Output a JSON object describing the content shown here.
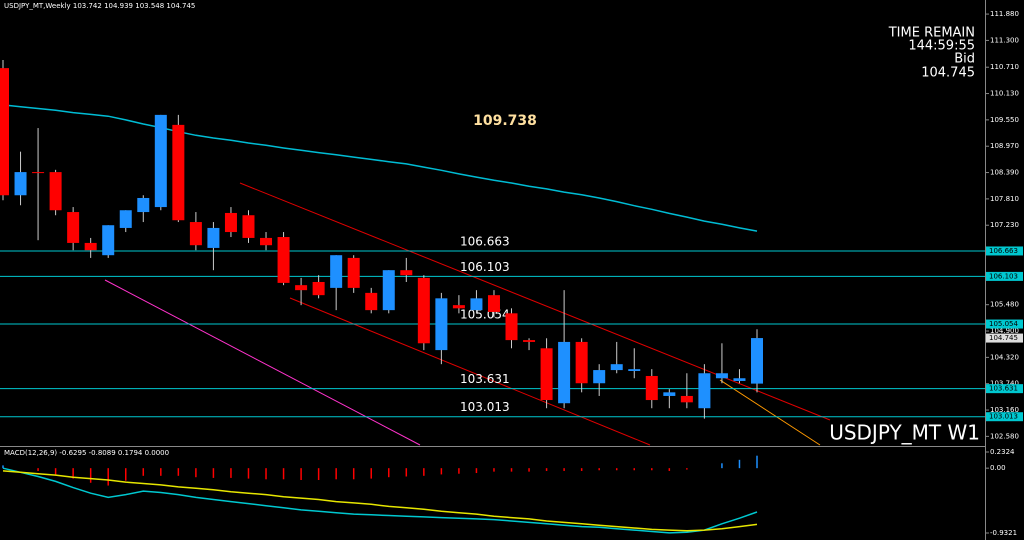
{
  "chart_data": {
    "type": "candlestick",
    "title": "USDJPY_MT,Weekly  103.742 104.939 103.548 104.745",
    "info": [
      "TIME REMAIN",
      "144:59:55",
      "Bid",
      "104.745"
    ],
    "watermark": "USDJPY_MT W1",
    "annotation": "109.738",
    "ylim": [
      102.39,
      112.19
    ],
    "yticks": [
      {
        "value": 111.88,
        "label": "111.880"
      },
      {
        "value": 111.3,
        "label": "111.300"
      },
      {
        "value": 110.71,
        "label": "110.710"
      },
      {
        "value": 110.13,
        "label": "110.130"
      },
      {
        "value": 109.55,
        "label": "109.550"
      },
      {
        "value": 108.97,
        "label": "108.970"
      },
      {
        "value": 108.39,
        "label": "108.390"
      },
      {
        "value": 107.81,
        "label": "107.810"
      },
      {
        "value": 107.23,
        "label": "107.230"
      },
      {
        "value": 105.48,
        "label": "105.480"
      },
      {
        "value": 104.9,
        "label": "104.900"
      },
      {
        "value": 104.32,
        "label": "104.320"
      },
      {
        "value": 103.74,
        "label": "103.740"
      },
      {
        "value": 103.16,
        "label": "103.160"
      },
      {
        "value": 102.58,
        "label": "102.580"
      }
    ],
    "levels": [
      106.663,
      106.103,
      105.054,
      103.631,
      103.013
    ],
    "level_color": "#00c8d0",
    "bull_color": "#1e90ff",
    "bear_color": "#ff0000",
    "open": [
      110.69,
      107.89,
      108.4,
      108.4,
      107.52,
      106.84,
      106.57,
      107.17,
      107.52,
      107.63,
      109.44,
      107.3,
      106.73,
      107.5,
      107.45,
      106.95,
      106.97,
      105.91,
      105.98,
      105.85,
      106.51,
      105.74,
      105.36,
      106.24,
      106.07,
      104.48,
      105.47,
      105.36,
      105.69,
      105.29,
      104.7,
      104.52,
      103.31,
      104.66,
      103.75,
      104.04,
      104.02,
      103.91,
      103.47,
      103.47,
      103.2,
      103.86,
      103.8,
      103.742
    ],
    "high": [
      110.87,
      108.85,
      109.37,
      108.45,
      107.63,
      106.95,
      107.23,
      107.56,
      107.89,
      109.66,
      109.66,
      107.52,
      107.3,
      107.63,
      107.56,
      107.08,
      107.08,
      106.07,
      106.13,
      106.57,
      106.57,
      105.85,
      106.24,
      106.51,
      106.13,
      105.74,
      105.69,
      105.8,
      105.8,
      105.4,
      104.74,
      104.74,
      105.8,
      104.74,
      104.17,
      104.66,
      104.52,
      104.06,
      103.62,
      103.97,
      104.17,
      104.63,
      104.06,
      104.939
    ],
    "low": [
      107.78,
      107.67,
      106.9,
      107.45,
      106.68,
      106.51,
      106.51,
      107.08,
      107.3,
      107.56,
      107.3,
      106.68,
      106.24,
      106.97,
      106.84,
      106.68,
      105.91,
      105.47,
      105.62,
      105.36,
      105.74,
      105.29,
      105.29,
      105.98,
      104.48,
      104.17,
      105.29,
      105.29,
      105.2,
      104.52,
      104.48,
      103.2,
      103.2,
      103.55,
      103.47,
      103.97,
      103.86,
      103.2,
      103.2,
      103.2,
      102.97,
      103.75,
      103.75,
      103.548
    ],
    "close": [
      107.89,
      108.4,
      108.38,
      107.56,
      106.84,
      106.68,
      107.23,
      107.56,
      107.83,
      109.66,
      107.34,
      106.79,
      107.17,
      107.08,
      106.95,
      106.79,
      105.96,
      105.8,
      105.69,
      106.57,
      105.85,
      105.36,
      106.24,
      106.13,
      104.63,
      105.62,
      105.4,
      105.62,
      105.32,
      104.7,
      104.66,
      103.38,
      104.66,
      103.75,
      104.04,
      104.17,
      104.06,
      103.38,
      103.55,
      103.33,
      103.97,
      103.97,
      103.86,
      104.745
    ],
    "ma_color": "#00bcd4",
    "ma_values": [
      109.88,
      109.84,
      109.8,
      109.76,
      109.71,
      109.67,
      109.63,
      109.55,
      109.46,
      109.38,
      109.29,
      109.21,
      109.15,
      109.1,
      109.04,
      108.99,
      108.93,
      108.88,
      108.83,
      108.78,
      108.73,
      108.68,
      108.63,
      108.58,
      108.51,
      108.44,
      108.36,
      108.29,
      108.22,
      108.16,
      108.09,
      108.03,
      107.96,
      107.9,
      107.83,
      107.75,
      107.66,
      107.58,
      107.49,
      107.41,
      107.32,
      107.25,
      107.17,
      107.1
    ],
    "macd": {
      "title": "MACD(12,26,9) -0.6295 -0.8089 0.1794 0.0000",
      "ylim": [
        -0.9321,
        0.2324
      ],
      "yticks": [
        0.2324,
        {
          "value": 0,
          "label": "0.00"
        },
        -0.9321
      ],
      "main_color": "#00c8d0",
      "signal_color": "#e6e600",
      "main": [
        0,
        -0.06,
        -0.12,
        -0.19,
        -0.28,
        -0.36,
        -0.42,
        -0.38,
        -0.33,
        -0.35,
        -0.38,
        -0.42,
        -0.45,
        -0.48,
        -0.51,
        -0.54,
        -0.57,
        -0.6,
        -0.62,
        -0.64,
        -0.66,
        -0.67,
        -0.68,
        -0.69,
        -0.7,
        -0.71,
        -0.72,
        -0.73,
        -0.74,
        -0.76,
        -0.78,
        -0.8,
        -0.82,
        -0.84,
        -0.85,
        -0.87,
        -0.89,
        -0.91,
        -0.93,
        -0.92,
        -0.89,
        -0.8,
        -0.72,
        -0.6295
      ],
      "signal": [
        -0.04,
        -0.06,
        -0.08,
        -0.1,
        -0.13,
        -0.15,
        -0.17,
        -0.2,
        -0.22,
        -0.24,
        -0.27,
        -0.29,
        -0.31,
        -0.34,
        -0.36,
        -0.38,
        -0.41,
        -0.43,
        -0.45,
        -0.48,
        -0.5,
        -0.52,
        -0.55,
        -0.57,
        -0.59,
        -0.62,
        -0.64,
        -0.66,
        -0.69,
        -0.71,
        -0.73,
        -0.76,
        -0.78,
        -0.8,
        -0.82,
        -0.84,
        -0.86,
        -0.88,
        -0.89,
        -0.9,
        -0.89,
        -0.87,
        -0.84,
        -0.8089
      ],
      "histogram": [
        0.04,
        0,
        -0.04,
        -0.09,
        -0.15,
        -0.21,
        -0.25,
        -0.18,
        -0.11,
        -0.11,
        -0.11,
        -0.13,
        -0.14,
        -0.14,
        -0.15,
        -0.16,
        -0.16,
        -0.17,
        -0.17,
        -0.16,
        -0.16,
        -0.15,
        -0.13,
        -0.12,
        -0.11,
        -0.09,
        -0.08,
        -0.07,
        -0.05,
        -0.05,
        -0.05,
        -0.04,
        -0.04,
        -0.04,
        -0.03,
        -0.03,
        -0.03,
        -0.03,
        -0.04,
        -0.02,
        0,
        0.07,
        0.12,
        0.1794
      ]
    }
  }
}
